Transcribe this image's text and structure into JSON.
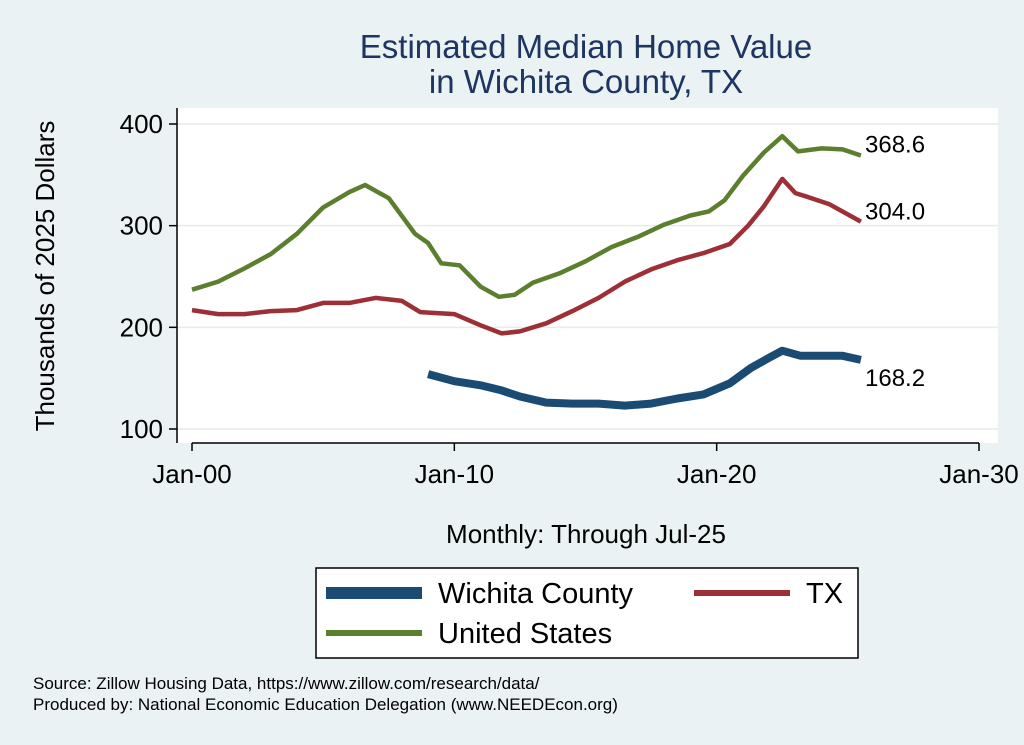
{
  "chart_data": {
    "type": "line",
    "title": [
      "Estimated Median Home Value",
      "in Wichita County, TX"
    ],
    "xlabel": "Monthly: Through Jul-25",
    "ylabel": "Thousands of 2025 Dollars",
    "x_unit": "year",
    "xlim": [
      2000,
      2030
    ],
    "ylim": [
      100,
      400
    ],
    "grid": true,
    "y_ticks": [
      100,
      200,
      300,
      400
    ],
    "x_ticks": [
      {
        "value": 2000,
        "label": "Jan-00"
      },
      {
        "value": 2010,
        "label": "Jan-10"
      },
      {
        "value": 2020,
        "label": "Jan-20"
      },
      {
        "value": 2030,
        "label": "Jan-30"
      }
    ],
    "series": [
      {
        "name": "United States",
        "color": "#5b7f2e",
        "end_label": "368.6",
        "points": [
          [
            2000.0,
            237
          ],
          [
            2001.0,
            245
          ],
          [
            2002.0,
            258
          ],
          [
            2003.0,
            272
          ],
          [
            2004.0,
            292
          ],
          [
            2005.0,
            318
          ],
          [
            2006.0,
            333
          ],
          [
            2006.6,
            340
          ],
          [
            2007.5,
            327
          ],
          [
            2008.5,
            292
          ],
          [
            2009.0,
            283
          ],
          [
            2009.5,
            263
          ],
          [
            2010.2,
            261
          ],
          [
            2011.0,
            240
          ],
          [
            2011.7,
            230
          ],
          [
            2012.3,
            232
          ],
          [
            2013.0,
            244
          ],
          [
            2014.0,
            253
          ],
          [
            2015.0,
            265
          ],
          [
            2016.0,
            279
          ],
          [
            2017.0,
            289
          ],
          [
            2018.0,
            301
          ],
          [
            2019.0,
            310
          ],
          [
            2019.7,
            314
          ],
          [
            2020.3,
            325
          ],
          [
            2021.0,
            349
          ],
          [
            2021.8,
            372
          ],
          [
            2022.5,
            388
          ],
          [
            2023.1,
            373
          ],
          [
            2024.0,
            376
          ],
          [
            2024.8,
            375
          ],
          [
            2025.5,
            369
          ]
        ]
      },
      {
        "name": "TX",
        "color": "#9d2f36",
        "end_label": "304.0",
        "points": [
          [
            2000.0,
            217
          ],
          [
            2001.0,
            213
          ],
          [
            2002.0,
            213
          ],
          [
            2003.0,
            216
          ],
          [
            2004.0,
            217
          ],
          [
            2005.0,
            224
          ],
          [
            2006.0,
            224
          ],
          [
            2007.0,
            229
          ],
          [
            2008.0,
            226
          ],
          [
            2008.7,
            215
          ],
          [
            2010.0,
            213
          ],
          [
            2011.0,
            202
          ],
          [
            2011.8,
            194
          ],
          [
            2012.5,
            196
          ],
          [
            2013.5,
            204
          ],
          [
            2014.5,
            216
          ],
          [
            2015.5,
            229
          ],
          [
            2016.5,
            245
          ],
          [
            2017.5,
            257
          ],
          [
            2018.5,
            266
          ],
          [
            2019.5,
            273
          ],
          [
            2020.5,
            282
          ],
          [
            2021.2,
            300
          ],
          [
            2021.8,
            319
          ],
          [
            2022.5,
            346
          ],
          [
            2023.0,
            332
          ],
          [
            2023.5,
            328
          ],
          [
            2024.3,
            321
          ],
          [
            2025.5,
            304
          ]
        ]
      },
      {
        "name": "Wichita County",
        "color": "#1a4b73",
        "end_label": "168.2",
        "points": [
          [
            2009.0,
            154
          ],
          [
            2010.0,
            147
          ],
          [
            2011.0,
            143
          ],
          [
            2011.8,
            138
          ],
          [
            2012.5,
            132
          ],
          [
            2013.5,
            126
          ],
          [
            2014.5,
            125
          ],
          [
            2015.5,
            125
          ],
          [
            2016.5,
            123
          ],
          [
            2017.5,
            125
          ],
          [
            2018.5,
            130
          ],
          [
            2019.5,
            134
          ],
          [
            2020.5,
            145
          ],
          [
            2021.3,
            160
          ],
          [
            2022.0,
            170
          ],
          [
            2022.5,
            177
          ],
          [
            2023.2,
            172
          ],
          [
            2024.0,
            172
          ],
          [
            2024.8,
            172
          ],
          [
            2025.5,
            168
          ]
        ]
      }
    ],
    "legend": {
      "position": "bottom",
      "entries": [
        "Wichita County",
        "TX",
        "United States"
      ]
    },
    "notes": [
      "Source: Zillow Housing Data, https://www.zillow.com/research/data/",
      "Produced by: National Economic Education Delegation (www.NEEDEcon.org)"
    ]
  }
}
